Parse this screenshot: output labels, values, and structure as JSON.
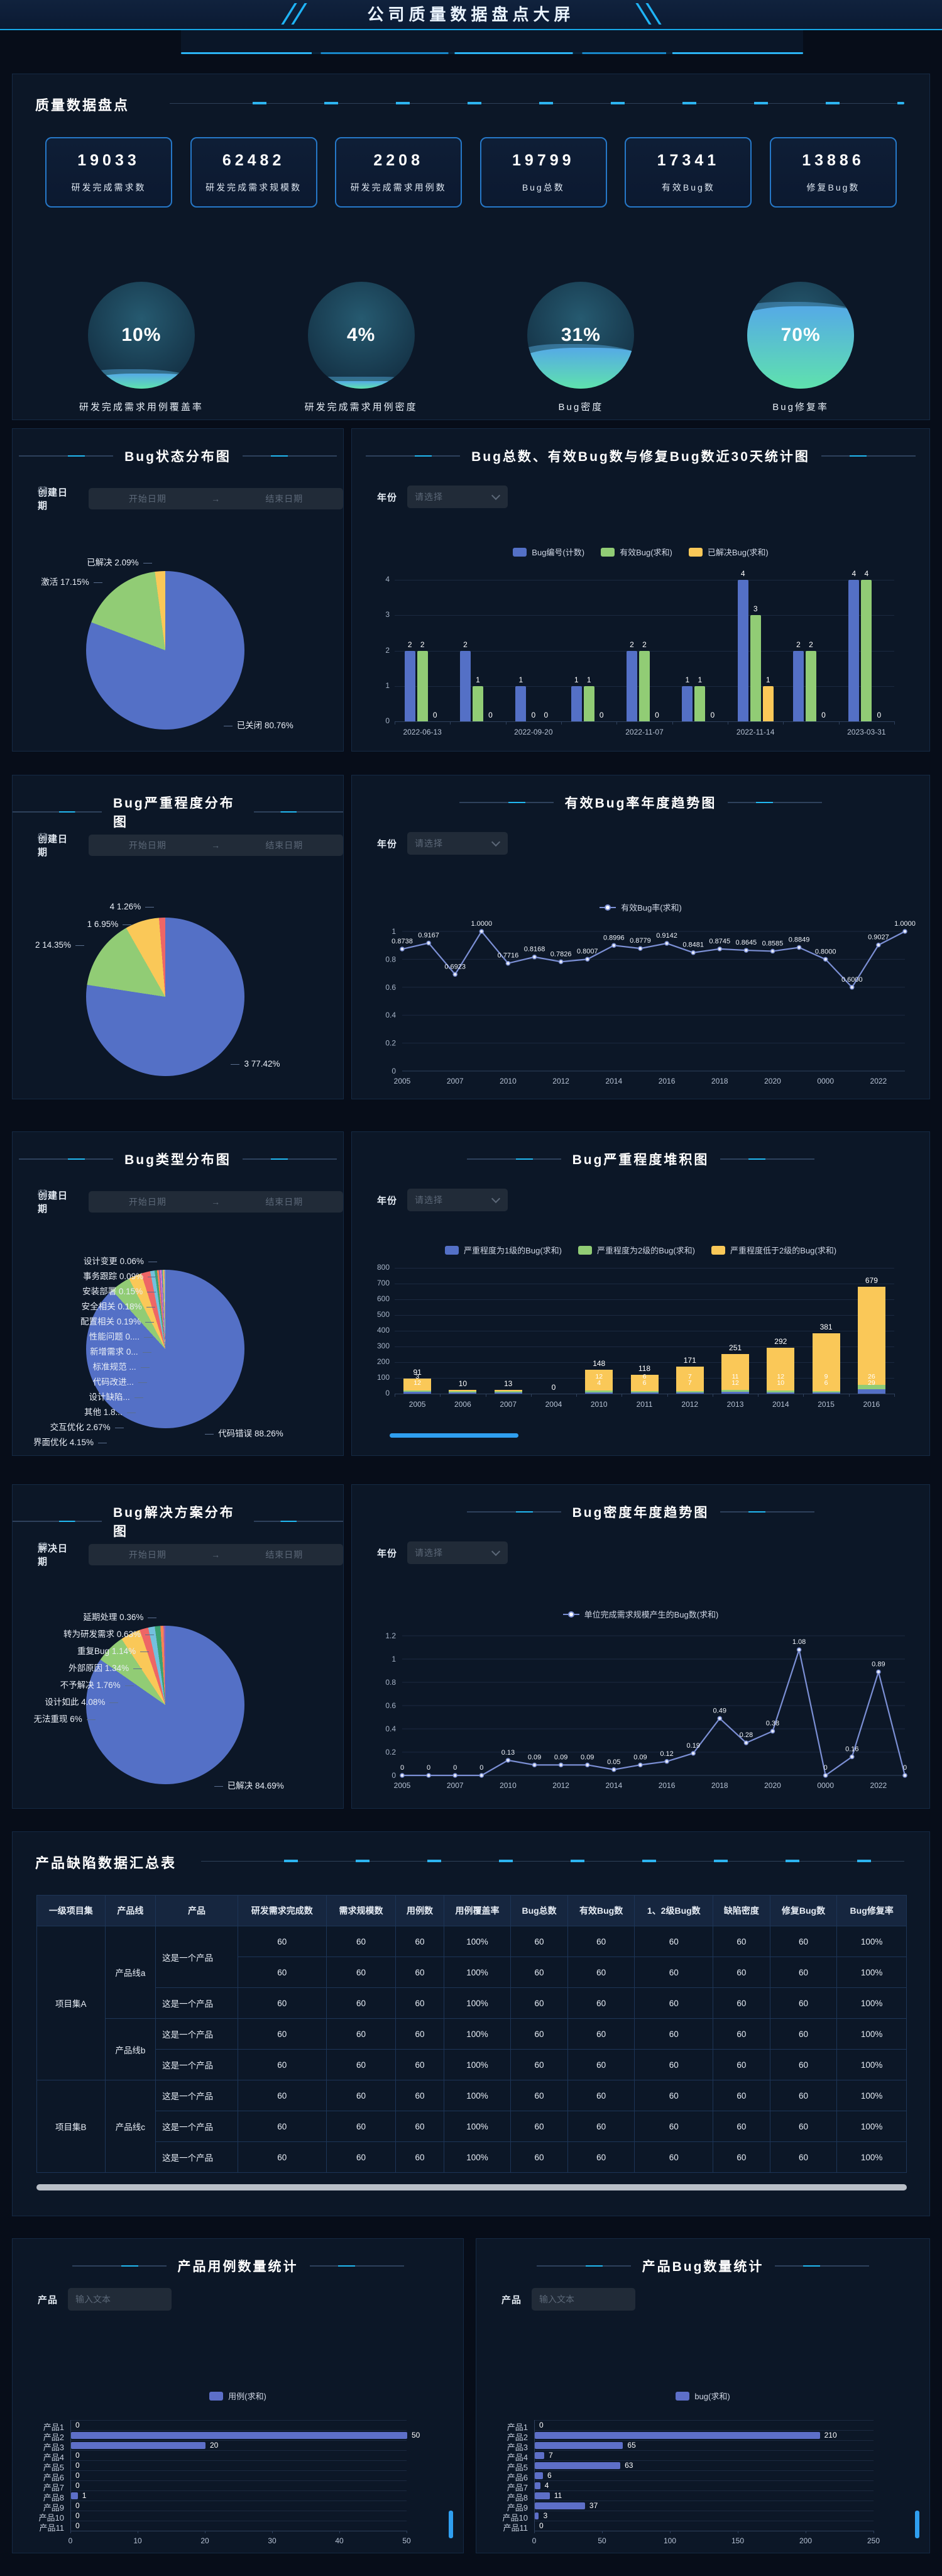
{
  "header": {
    "title": "公司质量数据盘点大屏"
  },
  "theme": {
    "accent": "#1fb3f5",
    "panel_bg": "#0c1727",
    "bar_blue": "#5470c6",
    "bar_green": "#91cc75",
    "bar_yellow": "#fac858",
    "line_blue": "#7b8fd4"
  },
  "overview": {
    "section_title": "质量数据盘点",
    "kpis": [
      {
        "value": "19033",
        "label": "研发完成需求数"
      },
      {
        "value": "62482",
        "label": "研发完成需求规模数"
      },
      {
        "value": "2208",
        "label": "研发完成需求用例数"
      },
      {
        "value": "19799",
        "label": "Bug总数"
      },
      {
        "value": "17341",
        "label": "有效Bug数"
      },
      {
        "value": "13886",
        "label": "修复Bug数"
      }
    ],
    "gauges": [
      {
        "percent": "10%",
        "value": 10,
        "label": "研发完成需求用例覆盖率"
      },
      {
        "percent": "4%",
        "value": 4,
        "label": "研发完成需求用例密度"
      },
      {
        "percent": "31%",
        "value": 31,
        "label": "Bug密度"
      },
      {
        "percent": "70%",
        "value": 70,
        "label": "Bug修复率"
      }
    ]
  },
  "filters": {
    "create_date_label": "创建日期",
    "solve_date_label": "解决日期",
    "year_label": "年份",
    "product_label": "产品",
    "start_placeholder": "开始日期",
    "end_placeholder": "结束日期",
    "range_arrow": "→",
    "select_placeholder": "请选择",
    "input_placeholder": "输入文本"
  },
  "panels": {
    "bug_status": {
      "title": "Bug状态分布图",
      "chart_data": {
        "type": "pie",
        "slices": [
          {
            "name": "已关闭",
            "label": "已关闭 80.76%",
            "value": 80.76,
            "color": "#5470c6"
          },
          {
            "name": "激活",
            "label": "激活 17.15%",
            "value": 17.15,
            "color": "#91cc75"
          },
          {
            "name": "已解决",
            "label": "已解决 2.09%",
            "value": 2.09,
            "color": "#fac858"
          }
        ]
      }
    },
    "bug30": {
      "title": "Bug总数、有效Bug数与修复Bug数近30天统计图",
      "chart_data": {
        "type": "bar",
        "categories": [
          "2022-06-13",
          "",
          "2022-09-20",
          "",
          "2022-11-07",
          "",
          "2022-11-14",
          "",
          "2023-03-31"
        ],
        "series": [
          {
            "name": "Bug编号(计数)",
            "color": "#5470c6",
            "values": [
              2,
              2,
              1,
              1,
              2,
              1,
              4,
              2,
              4
            ]
          },
          {
            "name": "有效Bug(求和)",
            "color": "#91cc75",
            "values": [
              2,
              1,
              0,
              1,
              2,
              1,
              3,
              2,
              4
            ]
          },
          {
            "name": "已解决Bug(求和)",
            "color": "#fac858",
            "values": [
              0,
              0,
              0,
              0,
              0,
              0,
              1,
              0,
              0
            ]
          }
        ],
        "ylim": [
          0,
          4
        ],
        "yticks": [
          0,
          1,
          2,
          3,
          4
        ]
      }
    },
    "severity_pie": {
      "title": "Bug严重程度分布图",
      "chart_data": {
        "type": "pie",
        "slices": [
          {
            "name": "3",
            "label": "3 77.42%",
            "value": 77.42,
            "color": "#5470c6"
          },
          {
            "name": "2",
            "label": "2 14.35%",
            "value": 14.35,
            "color": "#91cc75"
          },
          {
            "name": "1",
            "label": "1 6.95%",
            "value": 6.95,
            "color": "#fac858"
          },
          {
            "name": "4",
            "label": "4 1.26%",
            "value": 1.26,
            "color": "#ee6666"
          }
        ]
      }
    },
    "valid_rate": {
      "title": "有效Bug率年度趋势图",
      "chart_data": {
        "type": "line",
        "legend": "有效Bug率(求和)",
        "x": [
          "2005",
          "",
          "2007",
          "",
          "2010",
          "",
          "2012",
          "",
          "2014",
          "",
          "2016",
          "",
          "2018",
          "",
          "2020",
          "",
          "0000",
          "",
          "2022",
          ""
        ],
        "values": [
          0.8738,
          0.9167,
          0.6923,
          1.0,
          0.7716,
          0.8168,
          0.7826,
          0.8007,
          0.8996,
          0.8779,
          0.9142,
          0.8481,
          0.8745,
          0.8645,
          0.8585,
          0.8849,
          0.8,
          0.6,
          0.9027,
          1.0
        ],
        "labels": [
          "0.8738",
          "0.9167",
          "0.6923",
          "1.0000",
          "0.7716",
          "0.8168",
          "0.7826",
          "0.8007",
          "0.8996",
          "0.8779",
          "0.9142",
          "0.8481",
          "0.8745",
          "0.8645",
          "0.8585",
          "0.8849",
          "0.8000",
          "0.6000",
          "0.9027",
          "1.0000"
        ],
        "ylim": [
          0,
          1
        ],
        "yticks": [
          0,
          0.2,
          0.4,
          0.6,
          0.8,
          1
        ]
      }
    },
    "type_pie": {
      "title": "Bug类型分布图",
      "chart_data": {
        "type": "pie",
        "slices": [
          {
            "name": "代码错误",
            "label": "代码错误 88.26%",
            "value": 88.26,
            "color": "#5470c6"
          },
          {
            "name": "界面优化",
            "label": "界面优化 4.15%",
            "value": 4.15,
            "color": "#91cc75"
          },
          {
            "name": "交互优化",
            "label": "交互优化 2.67%",
            "value": 2.67,
            "color": "#fac858"
          },
          {
            "name": "其他",
            "label": "其他 1.8...",
            "value": 1.85,
            "color": "#ee6666"
          },
          {
            "name": "设计缺陷",
            "label": "设计缺陷...",
            "value": 0.9,
            "color": "#73c0de"
          },
          {
            "name": "代码改进",
            "label": "代码改进...",
            "value": 0.5,
            "color": "#3ba272"
          },
          {
            "name": "标准规范",
            "label": "标准规范 ...",
            "value": 0.35,
            "color": "#fc8452"
          },
          {
            "name": "新增需求",
            "label": "新增需求 0...",
            "value": 0.3,
            "color": "#9a60b4"
          },
          {
            "name": "性能问题",
            "label": "性能问题 0....",
            "value": 0.25,
            "color": "#ea7ccc"
          },
          {
            "name": "配置相关",
            "label": "配置相关 0.19%",
            "value": 0.19,
            "color": "#5470c6"
          },
          {
            "name": "安全相关",
            "label": "安全相关 0.18%",
            "value": 0.18,
            "color": "#91cc75"
          },
          {
            "name": "安装部署",
            "label": "安装部署 0.15%",
            "value": 0.15,
            "color": "#fac858"
          },
          {
            "name": "事务跟踪",
            "label": "事务跟踪 0.09%",
            "value": 0.09,
            "color": "#ee6666"
          },
          {
            "name": "设计变更",
            "label": "设计变更 0.06%",
            "value": 0.06,
            "color": "#73c0de"
          }
        ]
      }
    },
    "severity_stack": {
      "title": "Bug严重程度堆积图",
      "chart_data": {
        "type": "stacked-bar",
        "categories": [
          "2005",
          "2006",
          "2007",
          "2004",
          "2010",
          "2011",
          "2012",
          "2013",
          "2014",
          "2015",
          "2016"
        ],
        "series": [
          {
            "name": "严重程度为1级的Bug(求和)",
            "color": "#5470c6",
            "values": [
              12,
              1,
              2,
              0,
              4,
              6,
              7,
              12,
              10,
              6,
              29
            ]
          },
          {
            "name": "严重程度为2级的Bug(求和)",
            "color": "#91cc75",
            "values": [
              3,
              1,
              2,
              0,
              12,
              6,
              7,
              11,
              12,
              9,
              26
            ]
          },
          {
            "name": "严重程度低于2级的Bug(求和)",
            "color": "#fac858",
            "values": [
              76,
              8,
              9,
              0,
              132,
              106,
              157,
              228,
              270,
              366,
              624
            ]
          }
        ],
        "totals": [
          91,
          10,
          13,
          0,
          148,
          118,
          171,
          251,
          292,
          381,
          679
        ],
        "ylim": [
          0,
          800
        ],
        "yticks": [
          0,
          100,
          200,
          300,
          400,
          500,
          600,
          700,
          800
        ]
      }
    },
    "solution_pie": {
      "title": "Bug解决方案分布图",
      "chart_data": {
        "type": "pie",
        "slices": [
          {
            "name": "已解决",
            "label": "已解决 84.69%",
            "value": 84.69,
            "color": "#5470c6"
          },
          {
            "name": "无法重现",
            "label": "无法重现 6%",
            "value": 6,
            "color": "#91cc75"
          },
          {
            "name": "设计如此",
            "label": "设计如此 4.08%",
            "value": 4.08,
            "color": "#fac858"
          },
          {
            "name": "不予解决",
            "label": "不予解决 1.76%",
            "value": 1.76,
            "color": "#ee6666"
          },
          {
            "name": "外部原因",
            "label": "外部原因 1.34%",
            "value": 1.34,
            "color": "#73c0de"
          },
          {
            "name": "重复Bug",
            "label": "重复Bug 1.14%",
            "value": 1.14,
            "color": "#3ba272"
          },
          {
            "name": "转为研发需求",
            "label": "转为研发需求 0.63%",
            "value": 0.63,
            "color": "#fc8452"
          },
          {
            "name": "延期处理",
            "label": "延期处理 0.36%",
            "value": 0.36,
            "color": "#9a60b4"
          }
        ]
      }
    },
    "density": {
      "title": "Bug密度年度趋势图",
      "chart_data": {
        "type": "line",
        "legend": "单位完成需求规模产生的Bug数(求和)",
        "x": [
          "2005",
          "",
          "2007",
          "",
          "2010",
          "",
          "2012",
          "",
          "2014",
          "",
          "2016",
          "",
          "2018",
          "",
          "2020",
          "",
          "0000",
          "",
          "2022",
          ""
        ],
        "values": [
          0,
          0,
          0,
          0,
          0.13,
          0.09,
          0.09,
          0.09,
          0.05,
          0.09,
          0.12,
          0.19,
          0.49,
          0.28,
          0.38,
          1.08,
          0,
          0.16,
          0.89,
          0
        ],
        "labels": [
          "0",
          "0",
          "0",
          "0",
          "0.13",
          "0.09",
          "0.09",
          "0.09",
          "0.05",
          "0.09",
          "0.12",
          "0.19",
          "0.49",
          "0.28",
          "0.38",
          "1.08",
          "0",
          "0.16",
          "0.89",
          "0"
        ],
        "ylim": [
          0,
          1.2
        ],
        "yticks": [
          0,
          0.2,
          0.4,
          0.6,
          0.8,
          1,
          1.2
        ]
      }
    },
    "table": {
      "title": "产品缺陷数据汇总表",
      "columns": [
        "一级项目集",
        "产品线",
        "产品",
        "研发需求完成数",
        "需求规模数",
        "用例数",
        "用例覆盖率",
        "Bug总数",
        "有效Bug数",
        "1、2级Bug数",
        "缺陷密度",
        "修复Bug数",
        "Bug修复率"
      ],
      "row_values": [
        "60",
        "60",
        "60",
        "100%",
        "60",
        "60",
        "60",
        "60",
        "60",
        "100%"
      ],
      "groups": [
        {
          "project": "项目集A",
          "lines": [
            {
              "line": "产品线a",
              "products": [
                {
                  "product": "这是一个产品",
                  "rows": 2
                },
                {
                  "product": "这是一个产品",
                  "rows": 1
                }
              ]
            },
            {
              "line": "产品线b",
              "products": [
                {
                  "product": "这是一个产品",
                  "rows": 1
                },
                {
                  "product": "这是一个产品",
                  "rows": 1
                }
              ]
            }
          ]
        },
        {
          "project": "项目集B",
          "lines": [
            {
              "line": "产品线c",
              "products": [
                {
                  "product": "这是一个产品",
                  "rows": 1
                },
                {
                  "product": "这是一个产品",
                  "rows": 1
                },
                {
                  "product": "这是一个产品",
                  "rows": 1
                }
              ]
            }
          ]
        }
      ]
    },
    "case_count": {
      "title": "产品用例数量统计",
      "chart_data": {
        "type": "bar",
        "orientation": "horizontal",
        "legend": "用例(求和)",
        "categories": [
          "产品1",
          "产品2",
          "产品3",
          "产品4",
          "产品5",
          "产品6",
          "产品7",
          "产品8",
          "产品9",
          "产品10",
          "产品11"
        ],
        "values": [
          0,
          50,
          20,
          0,
          0,
          0,
          0,
          1,
          0,
          0,
          0
        ],
        "xlim": [
          0,
          50
        ],
        "xticks": [
          0,
          10,
          20,
          30,
          40,
          50
        ]
      }
    },
    "bug_count": {
      "title": "产品Bug数量统计",
      "chart_data": {
        "type": "bar",
        "orientation": "horizontal",
        "legend": "bug(求和)",
        "categories": [
          "产品1",
          "产品2",
          "产品3",
          "产品4",
          "产品5",
          "产品6",
          "产品7",
          "产品8",
          "产品9",
          "产品10",
          "产品11"
        ],
        "values": [
          0,
          210,
          65,
          7,
          63,
          6,
          4,
          11,
          37,
          3,
          0
        ],
        "xlim": [
          0,
          250
        ],
        "xticks": [
          0,
          50,
          100,
          150,
          200,
          250
        ]
      }
    }
  }
}
